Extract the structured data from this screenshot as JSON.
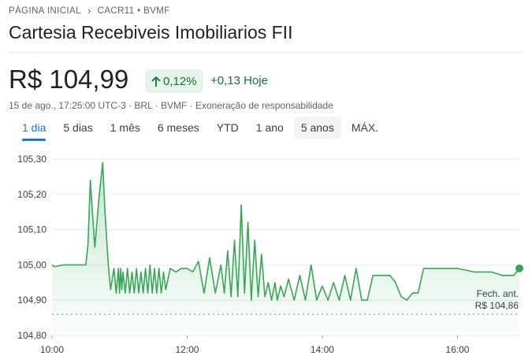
{
  "breadcrumb": {
    "home": "PÁGINA INICIAL",
    "ticker": "CACR11 • BVMF"
  },
  "title": "Cartesia Recebiveis Imobiliarios FII",
  "price": "R$ 104,99",
  "change_pct": "0,12%",
  "change_abs": "+0,13 Hoje",
  "meta": "15 de ago., 17:25:00 UTC-3 · BRL · BVMF · Exoneração de responsabilidade",
  "tabs": [
    "1 dia",
    "5 dias",
    "1 mês",
    "6 meses",
    "YTD",
    "1 ano",
    "5 anos",
    "MÁX."
  ],
  "active_tab": "1 dia",
  "prev_close": {
    "label": "Fech. ant.",
    "value": "R$ 104,86"
  },
  "colors": {
    "accent": "#1a73e8",
    "positive": "#137333",
    "line": "#34a853"
  },
  "chart_data": {
    "type": "line",
    "title": "",
    "xlabel": "",
    "ylabel": "",
    "ylim": [
      104.8,
      105.3
    ],
    "xlim": [
      "10:00",
      "16:55"
    ],
    "yticks": [
      "104,80",
      "104,90",
      "105,00",
      "105,10",
      "105,20",
      "105,30"
    ],
    "xticks": [
      "10:00",
      "12:00",
      "14:00",
      "16:00"
    ],
    "prev_close": 104.86,
    "last": 104.99,
    "grid": true,
    "series": [
      {
        "x": [
          "10:00",
          "10:02",
          "10:10",
          "10:20",
          "10:26",
          "10:30",
          "10:32",
          "10:34",
          "10:38",
          "10:42",
          "10:45",
          "10:47",
          "10:50",
          "10:52",
          "10:55",
          "10:57",
          "10:59",
          "11:00",
          "11:01",
          "11:02",
          "11:03",
          "11:05",
          "11:07",
          "11:09",
          "11:11",
          "11:13",
          "11:15",
          "11:17",
          "11:19",
          "11:21",
          "11:23",
          "11:25",
          "11:27",
          "11:29",
          "11:31",
          "11:33",
          "11:35",
          "11:37",
          "11:39",
          "11:41",
          "11:45",
          "11:50",
          "11:55",
          "12:00",
          "12:05",
          "12:10",
          "12:15",
          "12:20",
          "12:25",
          "12:30",
          "12:33",
          "12:36",
          "12:39",
          "12:42",
          "12:45",
          "12:48",
          "12:51",
          "12:54",
          "12:57",
          "13:00",
          "13:03",
          "13:06",
          "13:09",
          "13:12",
          "13:15",
          "13:18",
          "13:20",
          "13:23",
          "13:26",
          "13:30",
          "13:35",
          "13:40",
          "13:45",
          "13:50",
          "13:55",
          "14:00",
          "14:05",
          "14:10",
          "14:15",
          "14:20",
          "14:25",
          "14:30",
          "14:35",
          "14:40",
          "14:45",
          "14:50",
          "14:55",
          "15:00",
          "15:05",
          "15:10",
          "15:15",
          "15:20",
          "15:25",
          "15:30",
          "15:35",
          "15:40",
          "15:45",
          "16:00",
          "16:15",
          "16:30",
          "16:40",
          "16:50",
          "16:55"
        ],
        "y": [
          105.0,
          104.995,
          105.0,
          105.0,
          105.0,
          105.0,
          105.06,
          105.24,
          105.05,
          105.2,
          105.29,
          105.15,
          105.0,
          104.93,
          104.99,
          104.92,
          104.99,
          104.92,
          104.99,
          104.93,
          104.98,
          104.92,
          104.99,
          104.92,
          104.98,
          104.92,
          104.99,
          104.92,
          104.98,
          104.92,
          104.99,
          104.92,
          105.0,
          104.92,
          104.99,
          104.92,
          104.99,
          104.92,
          104.98,
          104.93,
          104.99,
          104.98,
          104.99,
          104.99,
          104.98,
          105.01,
          104.92,
          105.02,
          104.92,
          105.0,
          104.92,
          105.04,
          104.91,
          105.07,
          104.91,
          105.17,
          104.92,
          105.12,
          104.9,
          105.07,
          104.91,
          105.03,
          104.91,
          104.95,
          104.9,
          104.95,
          104.9,
          104.94,
          104.91,
          104.96,
          104.9,
          104.97,
          104.9,
          105.0,
          104.9,
          104.94,
          104.9,
          104.95,
          104.9,
          104.97,
          104.9,
          104.99,
          104.9,
          104.9,
          104.97,
          104.97,
          104.97,
          104.97,
          104.95,
          104.91,
          104.9,
          104.92,
          104.92,
          104.99,
          104.99,
          104.99,
          104.99,
          104.99,
          104.98,
          104.98,
          104.97,
          104.97,
          104.99
        ]
      }
    ]
  }
}
